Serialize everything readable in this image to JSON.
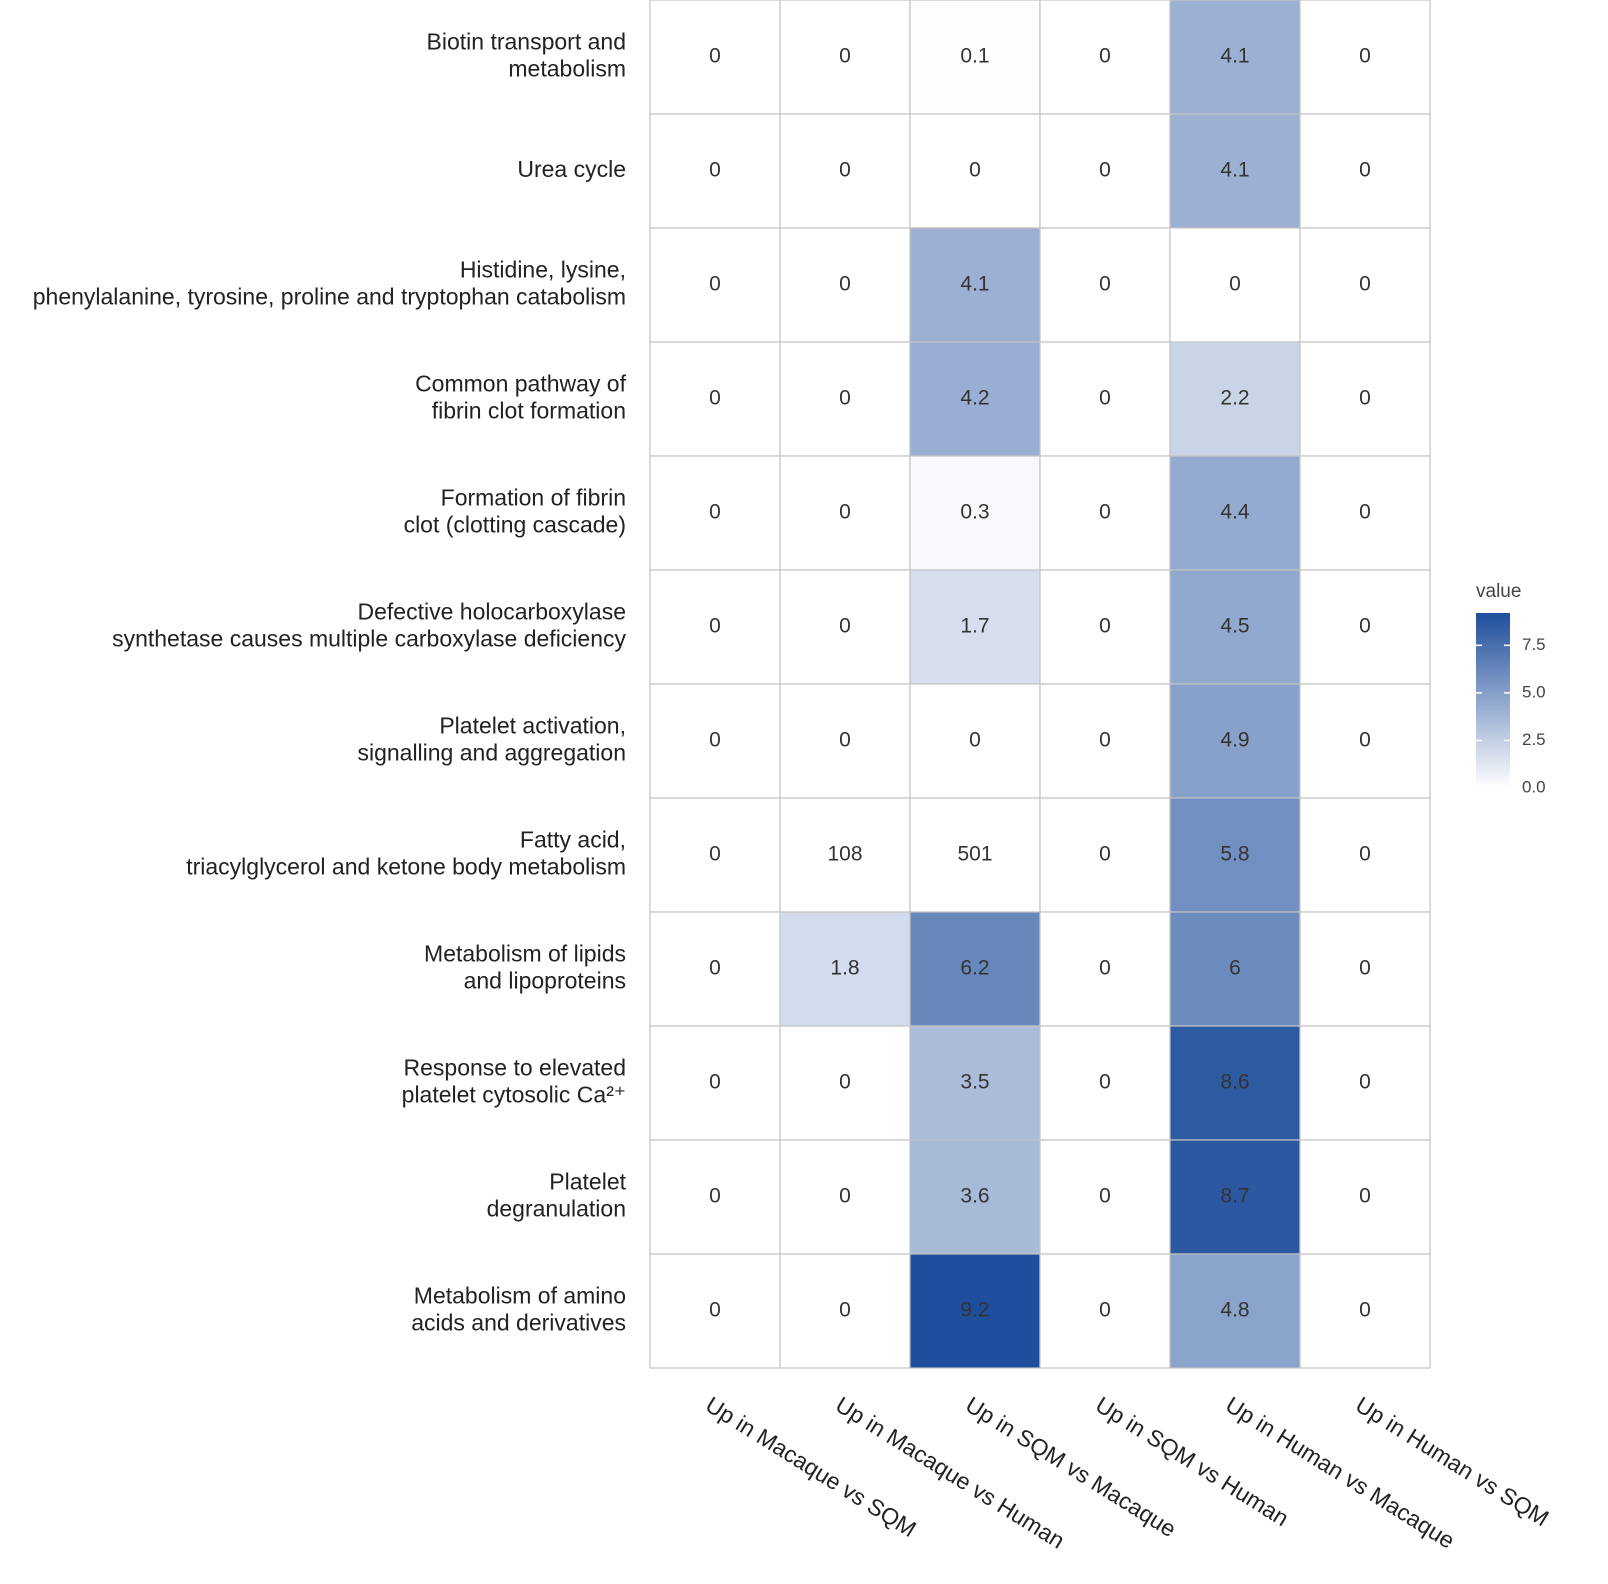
{
  "chart_data": {
    "type": "heatmap",
    "columns": [
      "Up in Macaque vs SQM",
      "Up in Macaque vs Human",
      "Up in SQM vs Macaque",
      "Up in SQM vs Human",
      "Up in Human vs Macaque",
      "Up in Human vs SQM"
    ],
    "rows": [
      [
        "Biotin transport and",
        "metabolism"
      ],
      [
        "Urea cycle"
      ],
      [
        "Histidine, lysine,",
        "phenylalanine, tyrosine, proline and tryptophan catabolism"
      ],
      [
        "Common pathway of",
        "fibrin clot formation"
      ],
      [
        "Formation of fibrin",
        "clot (clotting cascade)"
      ],
      [
        "Defective holocarboxylase",
        "synthetase causes multiple carboxylase deficiency"
      ],
      [
        "Platelet activation,",
        "signalling and aggregation"
      ],
      [
        "Fatty acid,",
        "triacylglycerol and ketone body metabolism"
      ],
      [
        "Metabolism of lipids",
        "and lipoproteins"
      ],
      [
        "Response to elevated",
        "platelet cytosolic Ca²⁺"
      ],
      [
        "Platelet",
        "degranulation"
      ],
      [
        "Metabolism of amino",
        "acids and derivatives"
      ]
    ],
    "values": [
      [
        0,
        0,
        0.1,
        0,
        4.1,
        0
      ],
      [
        0,
        0,
        0,
        0,
        4.1,
        0
      ],
      [
        0,
        0,
        4.1,
        0,
        0,
        0
      ],
      [
        0,
        0,
        4.2,
        0,
        2.2,
        0
      ],
      [
        0,
        0,
        0.3,
        0,
        4.4,
        0
      ],
      [
        0,
        0,
        1.7,
        0,
        4.5,
        0
      ],
      [
        0,
        0,
        0,
        0,
        4.9,
        0
      ],
      [
        0,
        null,
        null,
        0,
        5.8,
        0
      ],
      [
        0,
        1.8,
        6.2,
        0,
        6,
        0
      ],
      [
        0,
        0,
        3.5,
        0,
        8.6,
        0
      ],
      [
        0,
        0,
        3.6,
        0,
        8.7,
        0
      ],
      [
        0,
        0,
        9.2,
        0,
        4.8,
        0
      ]
    ],
    "value_labels": [
      [
        null,
        null,
        null,
        null,
        null,
        null
      ],
      [
        null,
        null,
        null,
        null,
        null,
        null
      ],
      [
        null,
        null,
        null,
        null,
        null,
        null
      ],
      [
        null,
        null,
        null,
        null,
        null,
        null
      ],
      [
        null,
        null,
        null,
        null,
        null,
        null
      ],
      [
        null,
        null,
        null,
        null,
        null,
        null
      ],
      [
        null,
        null,
        null,
        null,
        null,
        null
      ],
      [
        null,
        "108",
        "501",
        null,
        null,
        null
      ],
      [
        null,
        null,
        null,
        null,
        null,
        null
      ],
      [
        null,
        null,
        null,
        null,
        null,
        null
      ],
      [
        null,
        null,
        null,
        null,
        null,
        null
      ],
      [
        null,
        null,
        null,
        null,
        null,
        null
      ]
    ],
    "colorbar": {
      "title": "value",
      "lim": [
        0,
        9.2
      ],
      "colors": [
        "#ffffff",
        "#1f4e9c"
      ],
      "ticks": [
        {
          "value": 0,
          "label": "0.0"
        },
        {
          "value": 2.5,
          "label": "2.5"
        },
        {
          "value": 5,
          "label": "5.0"
        },
        {
          "value": 7.5,
          "label": "7.5"
        }
      ]
    }
  }
}
